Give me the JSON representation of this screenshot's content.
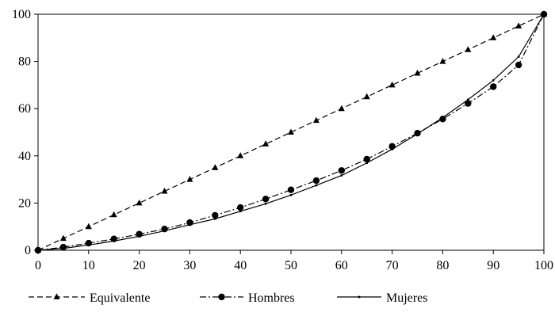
{
  "chart_data": {
    "type": "line",
    "title": "",
    "xlabel": "",
    "ylabel": "",
    "xlim": [
      0,
      100
    ],
    "ylim": [
      0,
      100
    ],
    "x_ticks": [
      0,
      10,
      20,
      30,
      40,
      50,
      60,
      70,
      80,
      90,
      100
    ],
    "y_ticks": [
      0,
      20,
      40,
      60,
      80,
      100
    ],
    "grid": false,
    "legend_position": "bottom",
    "series": [
      {
        "name": "Equivalente",
        "style": "dashed",
        "marker": "triangle",
        "color": "#000000",
        "x": [
          0,
          5,
          10,
          15,
          20,
          25,
          30,
          35,
          40,
          45,
          50,
          55,
          60,
          65,
          70,
          75,
          80,
          85,
          90,
          95,
          100
        ],
        "y": [
          0,
          5,
          10,
          15,
          20,
          25,
          30,
          35,
          40,
          45,
          50,
          55,
          60,
          65,
          70,
          75,
          80,
          85,
          90,
          95,
          100
        ]
      },
      {
        "name": "Hombres",
        "style": "dash-dot",
        "marker": "circle",
        "color": "#000000",
        "x": [
          0,
          5,
          10,
          15,
          20,
          25,
          30,
          35,
          40,
          45,
          50,
          55,
          60,
          65,
          70,
          75,
          80,
          85,
          90,
          95,
          100
        ],
        "y": [
          0,
          1.3,
          3.0,
          4.8,
          6.8,
          9.0,
          11.7,
          14.8,
          18.1,
          21.7,
          25.6,
          29.5,
          33.8,
          38.6,
          44.0,
          49.6,
          55.6,
          62.2,
          69.3,
          78.5,
          100
        ]
      },
      {
        "name": "Mujeres",
        "style": "solid",
        "marker": "small-square",
        "color": "#000000",
        "x": [
          0,
          5,
          10,
          15,
          20,
          25,
          30,
          35,
          40,
          45,
          50,
          55,
          60,
          65,
          70,
          75,
          80,
          85,
          90,
          95,
          100
        ],
        "y": [
          0,
          0.8,
          2.2,
          3.9,
          5.9,
          8.2,
          10.8,
          13.3,
          16.5,
          19.7,
          23.4,
          27.5,
          31.7,
          37.0,
          42.8,
          49.3,
          56.2,
          63.8,
          72.0,
          82.0,
          100
        ]
      }
    ]
  }
}
